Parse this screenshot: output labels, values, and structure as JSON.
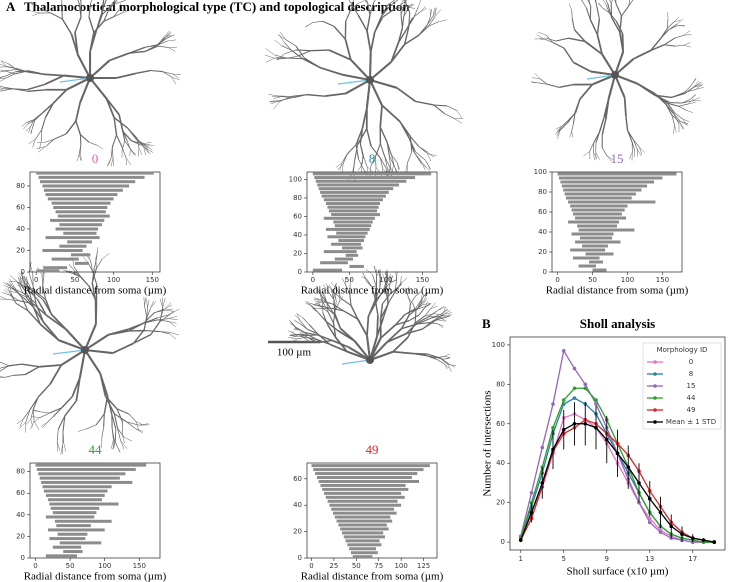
{
  "figure": {
    "panel_a": "A",
    "title_a": "Thalamocortical morphological type (TC) and topological description",
    "panel_b": "B",
    "scale_bar": "100 µm"
  },
  "chart_data": [
    {
      "type": "barcode",
      "title": "0",
      "title_color": "#d65fc0",
      "xlabel": "Radial distance from soma (µm)",
      "color": "#8c8c8c",
      "xlim": [
        -8,
        160
      ],
      "xticks": [
        0,
        50,
        100,
        150
      ],
      "ylim": [
        0,
        93
      ],
      "yticks": [
        0,
        20,
        40,
        60,
        80
      ],
      "bars": [
        [
          92,
          0,
          152
        ],
        [
          88,
          3,
          140
        ],
        [
          84,
          5,
          128
        ],
        [
          80,
          8,
          120
        ],
        [
          76,
          10,
          112
        ],
        [
          72,
          12,
          105
        ],
        [
          68,
          15,
          100
        ],
        [
          64,
          20,
          96
        ],
        [
          60,
          22,
          92
        ],
        [
          56,
          25,
          90
        ],
        [
          52,
          28,
          95
        ],
        [
          48,
          18,
          88
        ],
        [
          44,
          30,
          85
        ],
        [
          40,
          25,
          80
        ],
        [
          36,
          35,
          78
        ],
        [
          32,
          12,
          82
        ],
        [
          28,
          40,
          72
        ],
        [
          24,
          30,
          65
        ],
        [
          20,
          8,
          60
        ],
        [
          16,
          45,
          70
        ],
        [
          12,
          20,
          55
        ],
        [
          8,
          50,
          68
        ],
        [
          4,
          10,
          40
        ],
        [
          1,
          0,
          30
        ]
      ]
    },
    {
      "type": "barcode",
      "title": "8",
      "title_color": "#2a88a8",
      "xlabel": "Radial distance from soma (µm)",
      "color": "#8c8c8c",
      "xlim": [
        -8,
        170
      ],
      "xticks": [
        0,
        50,
        100,
        150
      ],
      "ylim": [
        0,
        108
      ],
      "yticks": [
        0,
        20,
        40,
        60,
        80,
        100
      ],
      "bars": [
        [
          106,
          0,
          162
        ],
        [
          102,
          2,
          140
        ],
        [
          98,
          4,
          128
        ],
        [
          94,
          6,
          118
        ],
        [
          90,
          8,
          110
        ],
        [
          86,
          10,
          104
        ],
        [
          82,
          12,
          100
        ],
        [
          78,
          15,
          96
        ],
        [
          74,
          18,
          92
        ],
        [
          70,
          20,
          90
        ],
        [
          66,
          22,
          88
        ],
        [
          62,
          25,
          92
        ],
        [
          58,
          15,
          85
        ],
        [
          54,
          28,
          82
        ],
        [
          50,
          30,
          80
        ],
        [
          46,
          18,
          78
        ],
        [
          42,
          32,
          75
        ],
        [
          38,
          20,
          72
        ],
        [
          34,
          35,
          70
        ],
        [
          30,
          25,
          66
        ],
        [
          26,
          40,
          68
        ],
        [
          22,
          15,
          60
        ],
        [
          18,
          45,
          62
        ],
        [
          14,
          30,
          55
        ],
        [
          10,
          10,
          48
        ],
        [
          6,
          50,
          70
        ],
        [
          2,
          0,
          40
        ]
      ]
    },
    {
      "type": "barcode",
      "title": "15",
      "title_color": "#9467bd",
      "xlabel": "Radial distance from soma (µm)",
      "color": "#8c8c8c",
      "xlim": [
        -8,
        178
      ],
      "xticks": [
        0,
        50,
        100,
        150
      ],
      "ylim": [
        0,
        100
      ],
      "yticks": [
        0,
        20,
        40,
        60,
        80,
        100
      ],
      "bars": [
        [
          98,
          0,
          170
        ],
        [
          94,
          2,
          150
        ],
        [
          90,
          4,
          138
        ],
        [
          86,
          6,
          128
        ],
        [
          82,
          8,
          120
        ],
        [
          78,
          10,
          112
        ],
        [
          74,
          12,
          106
        ],
        [
          70,
          15,
          140
        ],
        [
          66,
          18,
          100
        ],
        [
          62,
          20,
          96
        ],
        [
          58,
          22,
          92
        ],
        [
          54,
          25,
          98
        ],
        [
          50,
          15,
          88
        ],
        [
          46,
          28,
          85
        ],
        [
          42,
          30,
          110
        ],
        [
          38,
          20,
          80
        ],
        [
          34,
          32,
          78
        ],
        [
          30,
          25,
          90
        ],
        [
          26,
          35,
          72
        ],
        [
          22,
          18,
          68
        ],
        [
          18,
          40,
          80
        ],
        [
          14,
          22,
          60
        ],
        [
          10,
          45,
          65
        ],
        [
          6,
          30,
          55
        ],
        [
          2,
          50,
          70
        ]
      ]
    },
    {
      "type": "barcode",
      "title": "44",
      "title_color": "#2ca02c",
      "xlabel": "Radial distance from soma (µm)",
      "color": "#8c8c8c",
      "xlim": [
        -8,
        180
      ],
      "xticks": [
        0,
        50,
        100,
        150
      ],
      "ylim": [
        0,
        88
      ],
      "yticks": [
        0,
        20,
        40,
        60,
        80
      ],
      "bars": [
        [
          86,
          0,
          160
        ],
        [
          82,
          2,
          145
        ],
        [
          78,
          4,
          130
        ],
        [
          74,
          6,
          122
        ],
        [
          70,
          8,
          140
        ],
        [
          66,
          10,
          110
        ],
        [
          62,
          12,
          104
        ],
        [
          58,
          15,
          100
        ],
        [
          54,
          18,
          96
        ],
        [
          50,
          20,
          120
        ],
        [
          46,
          22,
          92
        ],
        [
          42,
          25,
          88
        ],
        [
          38,
          15,
          85
        ],
        [
          34,
          28,
          110
        ],
        [
          30,
          30,
          80
        ],
        [
          26,
          18,
          100
        ],
        [
          22,
          32,
          75
        ],
        [
          18,
          20,
          72
        ],
        [
          14,
          35,
          95
        ],
        [
          10,
          25,
          66
        ],
        [
          6,
          40,
          68
        ],
        [
          2,
          15,
          60
        ]
      ]
    },
    {
      "type": "barcode",
      "title": "49",
      "title_color": "#d62728",
      "xlabel": "Radial distance from soma (µm)",
      "color": "#8c8c8c",
      "xlim": [
        -5,
        140
      ],
      "xticks": [
        0,
        25,
        50,
        75,
        100,
        125
      ],
      "ylim": [
        0,
        72
      ],
      "yticks": [
        0,
        20,
        40,
        60
      ],
      "bars": [
        [
          70,
          0,
          132
        ],
        [
          67,
          2,
          125
        ],
        [
          64,
          4,
          118
        ],
        [
          61,
          6,
          112
        ],
        [
          58,
          8,
          120
        ],
        [
          55,
          10,
          105
        ],
        [
          52,
          12,
          108
        ],
        [
          49,
          14,
          100
        ],
        [
          46,
          16,
          104
        ],
        [
          43,
          18,
          96
        ],
        [
          40,
          20,
          100
        ],
        [
          37,
          22,
          92
        ],
        [
          34,
          24,
          95
        ],
        [
          31,
          26,
          88
        ],
        [
          28,
          28,
          90
        ],
        [
          25,
          30,
          84
        ],
        [
          22,
          32,
          86
        ],
        [
          19,
          34,
          80
        ],
        [
          16,
          36,
          82
        ],
        [
          13,
          38,
          76
        ],
        [
          10,
          40,
          78
        ],
        [
          7,
          42,
          72
        ],
        [
          4,
          44,
          74
        ],
        [
          1,
          46,
          68
        ]
      ]
    },
    {
      "type": "line",
      "title": "Sholl analysis",
      "xlabel": "Sholl surface (x10 µm)",
      "ylabel": "Number of intersections",
      "legend_title": "Morphology ID",
      "legend": "upper right",
      "x": [
        1,
        2,
        3,
        4,
        5,
        6,
        7,
        8,
        9,
        10,
        11,
        12,
        13,
        14,
        15,
        16,
        17,
        18,
        19
      ],
      "xlim": [
        0,
        20
      ],
      "xticks": [
        1,
        5,
        9,
        13,
        17
      ],
      "ylim": [
        -4,
        104
      ],
      "yticks": [
        0,
        20,
        40,
        60,
        80,
        100
      ],
      "series": [
        {
          "name": "0",
          "color": "#e377c2",
          "values": [
            2,
            15,
            28,
            45,
            63,
            65,
            62,
            58,
            50,
            40,
            30,
            20,
            12,
            6,
            3,
            1,
            0,
            0,
            0
          ]
        },
        {
          "name": "8",
          "color": "#2a7fa8",
          "values": [
            2,
            18,
            35,
            55,
            70,
            73,
            70,
            65,
            55,
            45,
            35,
            25,
            15,
            8,
            4,
            2,
            1,
            0,
            0
          ]
        },
        {
          "name": "15",
          "color": "#9467bd",
          "values": [
            3,
            25,
            48,
            70,
            97,
            88,
            80,
            70,
            58,
            45,
            32,
            20,
            10,
            5,
            2,
            1,
            0,
            0,
            0
          ]
        },
        {
          "name": "44",
          "color": "#2ca02c",
          "values": [
            2,
            20,
            38,
            58,
            72,
            78,
            78,
            72,
            62,
            50,
            38,
            25,
            15,
            8,
            4,
            2,
            1,
            0,
            0
          ]
        },
        {
          "name": "49",
          "color": "#d62728",
          "values": [
            1,
            12,
            28,
            46,
            55,
            58,
            62,
            60,
            55,
            50,
            44,
            36,
            26,
            18,
            10,
            5,
            2,
            1,
            0
          ]
        },
        {
          "name": "Mean ± 1 STD",
          "color": "#000000",
          "values": [
            1,
            15,
            30,
            47,
            57,
            60,
            60,
            58,
            52,
            45,
            38,
            30,
            22,
            15,
            8,
            4,
            2,
            1,
            0
          ],
          "errors": [
            1,
            5,
            8,
            10,
            10,
            11,
            11,
            11,
            12,
            12,
            11,
            10,
            9,
            8,
            6,
            4,
            2,
            1,
            1
          ]
        }
      ]
    }
  ]
}
